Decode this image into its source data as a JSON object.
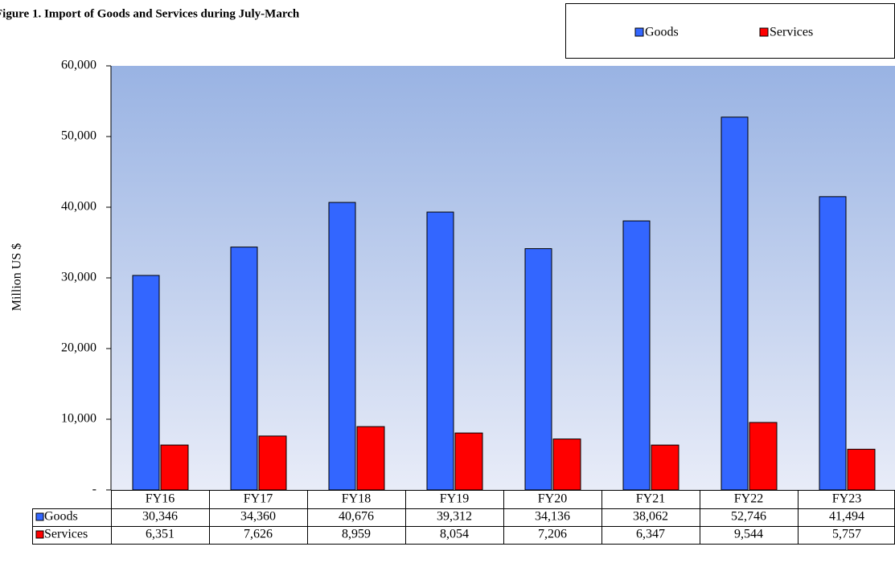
{
  "chart_data": {
    "type": "bar",
    "title": "Figure 1. Import  of Goods  and Services  during  July-March",
    "y_label": "Million US $",
    "categories": [
      "FY16",
      "FY17",
      "FY18",
      "FY19",
      "FY20",
      "FY21",
      "FY22",
      "FY23"
    ],
    "series": [
      {
        "name": "Goods",
        "color": "#3366ff",
        "values": [
          30346,
          34360,
          40676,
          39312,
          34136,
          38062,
          52746,
          41494
        ],
        "value_labels": [
          "30,346",
          "34,360",
          "40,676",
          "39,312",
          "34,136",
          "38,062",
          "52,746",
          "41,494"
        ]
      },
      {
        "name": "Services",
        "color": "#ff0000",
        "values": [
          6351,
          7626,
          8959,
          8054,
          7206,
          6347,
          9544,
          5757
        ],
        "value_labels": [
          "6,351",
          "7,626",
          "8,959",
          "8,054",
          "7,206",
          "6,347",
          "9,544",
          "5,757"
        ]
      }
    ],
    "ylim": [
      0,
      60000
    ],
    "yticks": [
      {
        "value": 0,
        "label": "-"
      },
      {
        "value": 10000,
        "label": "10,000"
      },
      {
        "value": 20000,
        "label": "20,000"
      },
      {
        "value": 30000,
        "label": "30,000"
      },
      {
        "value": 40000,
        "label": "40,000"
      },
      {
        "value": 50000,
        "label": "50,000"
      },
      {
        "value": 60000,
        "label": "60,000"
      }
    ],
    "legend": "top-right"
  }
}
